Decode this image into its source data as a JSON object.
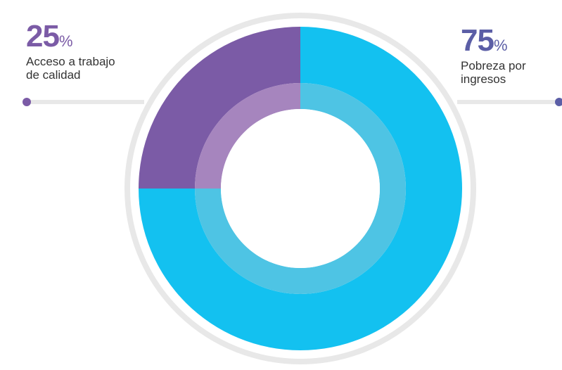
{
  "chart_data": {
    "type": "pie",
    "style": "donut",
    "slices": [
      {
        "value": 75,
        "label": "Pobreza por ingresos",
        "color": "#13C1F0",
        "inner_color": "#4EC4E4"
      },
      {
        "value": 25,
        "label": "Acceso a trabajo de calidad",
        "color": "#7B5BA6",
        "inner_color": "#A685BE"
      }
    ],
    "ring_color": "#E8E8E8",
    "connector_color": "#E8E8E8"
  },
  "labels": {
    "left": {
      "value": "25",
      "unit": "%",
      "line1": "Acceso a trabajo",
      "line2": "de calidad",
      "color": "#7B5BA6"
    },
    "right": {
      "value": "75",
      "unit": "%",
      "line1": "Pobreza por",
      "line2": "ingresos",
      "color": "#5B5EA6"
    }
  }
}
